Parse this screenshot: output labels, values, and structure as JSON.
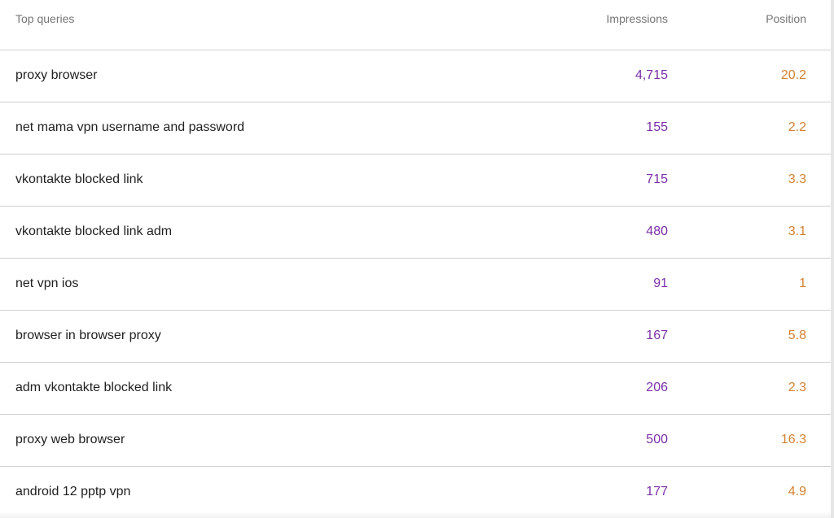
{
  "table": {
    "headers": {
      "query": "Top queries",
      "impressions": "Impressions",
      "position": "Position"
    },
    "rows": [
      {
        "query": "proxy browser",
        "impressions": "4,715",
        "position": "20.2"
      },
      {
        "query": "net mama vpn username and password",
        "impressions": "155",
        "position": "2.2"
      },
      {
        "query": "vkontakte blocked link",
        "impressions": "715",
        "position": "3.3"
      },
      {
        "query": "vkontakte blocked link adm",
        "impressions": "480",
        "position": "3.1"
      },
      {
        "query": "net vpn ios",
        "impressions": "91",
        "position": "1"
      },
      {
        "query": "browser in browser proxy",
        "impressions": "167",
        "position": "5.8"
      },
      {
        "query": "adm vkontakte blocked link",
        "impressions": "206",
        "position": "2.3"
      },
      {
        "query": "proxy web browser",
        "impressions": "500",
        "position": "16.3"
      },
      {
        "query": "android 12 pptp vpn",
        "impressions": "177",
        "position": "4.9"
      }
    ]
  },
  "colors": {
    "impressions": "#7b2fa8",
    "position": "#d4822f",
    "header_text": "#757575",
    "row_text": "#212121",
    "divider": "#cfcfcf"
  }
}
